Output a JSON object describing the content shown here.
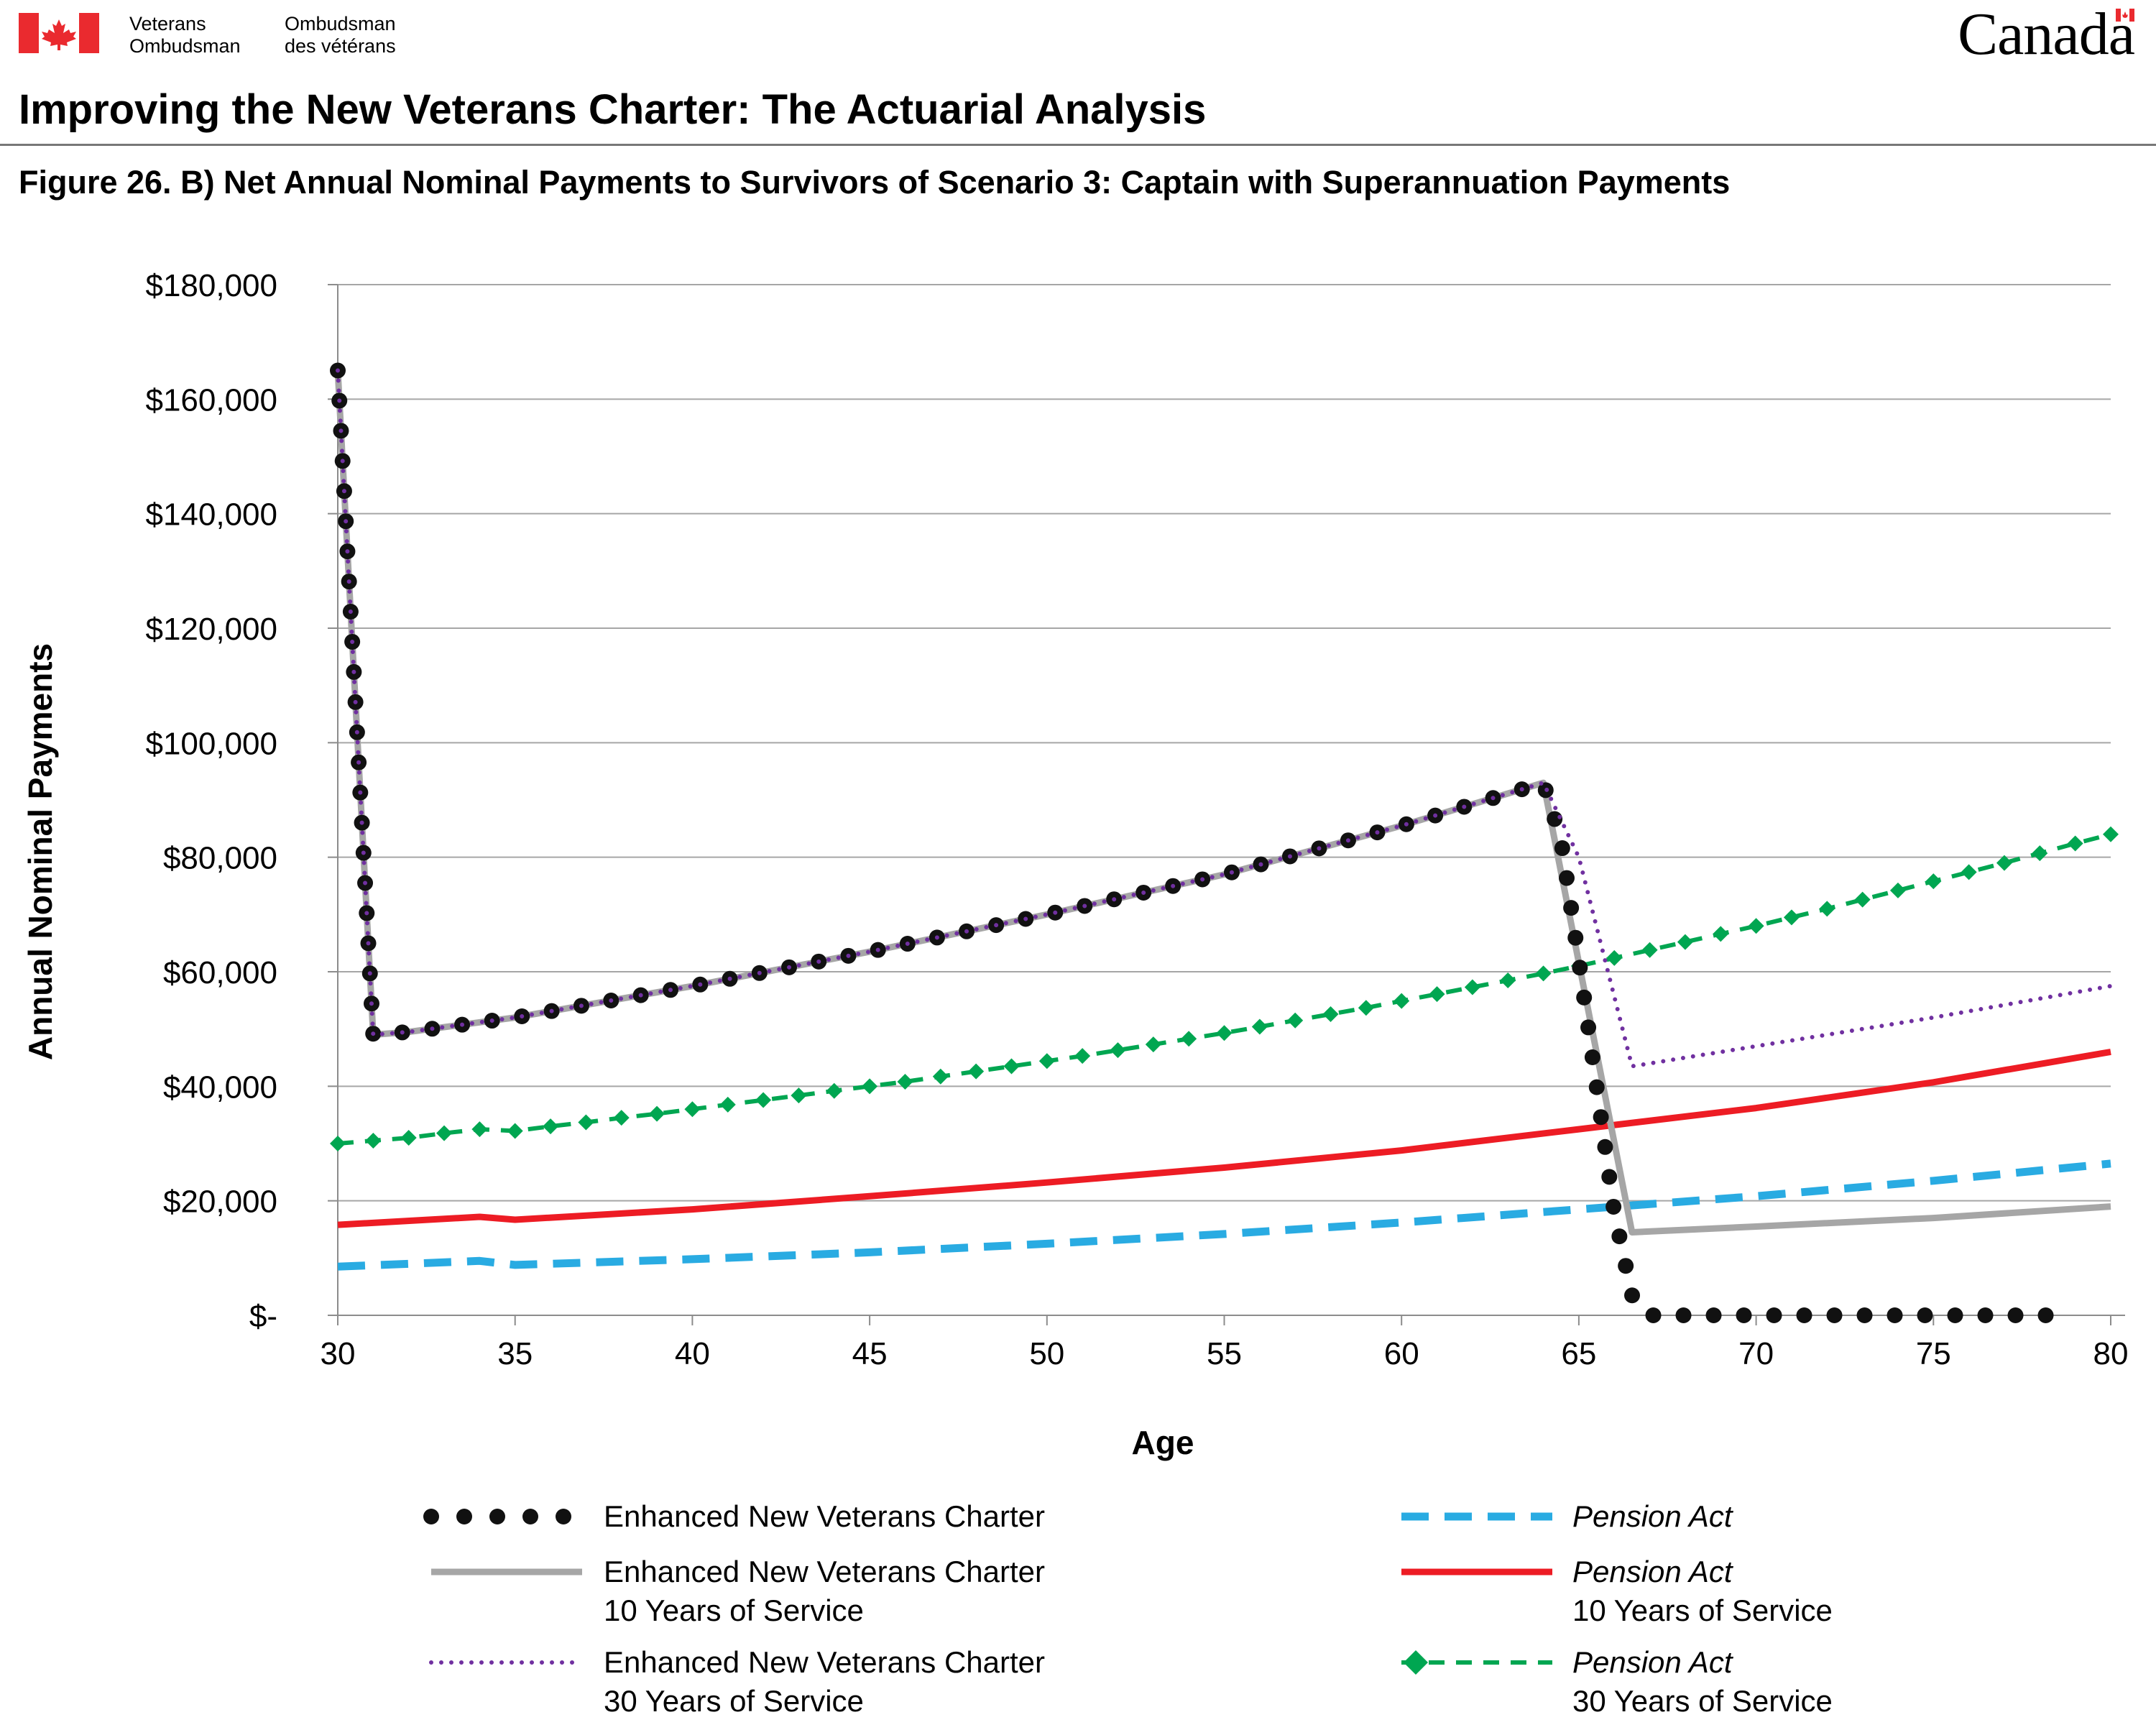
{
  "header": {
    "org_name_en_line1": "Veterans",
    "org_name_en_line2": "Ombudsman",
    "org_name_fr_line1": "Ombudsman",
    "org_name_fr_line2": "des vétérans",
    "wordmark": "Canada",
    "page_title": "Improving the New Veterans Charter: The Actuarial Analysis"
  },
  "figure": {
    "title": "Figure 26. B) Net Annual Nominal Payments to Survivors of Scenario 3: Captain with Superannuation Payments"
  },
  "colors": {
    "flag_red": "#ea2a2f",
    "enhanced_nvc": "#111111",
    "enhanced_nvc_10": "#a6a6a6",
    "enhanced_nvc_30": "#7030a0",
    "pension_act": "#29abe2",
    "pension_act_10": "#ed1c24",
    "pension_act_30": "#00a651"
  },
  "chart_data": {
    "type": "line",
    "xlabel": "Age",
    "ylabel": "Annual Nominal Payments",
    "xlim": [
      30,
      80
    ],
    "ylim": [
      0,
      180000
    ],
    "x_ticks": [
      "30",
      "35",
      "40",
      "45",
      "50",
      "55",
      "60",
      "65",
      "70",
      "75",
      "80"
    ],
    "y_ticks": [
      "$-",
      "$20,000",
      "$40,000",
      "$60,000",
      "$80,000",
      "$100,000",
      "$120,000",
      "$140,000",
      "$160,000",
      "$180,000"
    ],
    "grid": "horizontal",
    "legend": "bottom",
    "series": [
      {
        "name": "Enhanced New Veterans Charter",
        "legend_lines": [
          "Enhanced New Veterans Charter"
        ],
        "legend_italic": false,
        "style": "dots",
        "x": [
          30,
          31,
          32,
          35,
          40,
          45,
          50,
          55,
          60,
          64,
          64.5,
          65,
          65.5,
          66,
          66.5,
          67,
          68,
          70,
          75,
          79
        ],
        "y": [
          165000,
          49000,
          49500,
          52000,
          57500,
          63500,
          70000,
          77000,
          85500,
          93000,
          83000,
          62000,
          40000,
          18000,
          3500,
          0,
          0,
          0,
          0,
          0
        ]
      },
      {
        "name": "Enhanced New Veterans Charter 10 Years of Service",
        "legend_lines": [
          "Enhanced New Veterans Charter",
          "10 Years of Service"
        ],
        "legend_italic": false,
        "style": "solid",
        "x": [
          30,
          31,
          32,
          35,
          40,
          45,
          50,
          55,
          60,
          64,
          66.5,
          70,
          75,
          80
        ],
        "y": [
          165000,
          49000,
          49500,
          52000,
          57500,
          63500,
          70000,
          77000,
          85500,
          93000,
          14500,
          15500,
          17000,
          19000
        ]
      },
      {
        "name": "Enhanced New Veterans Charter 30 Years of Service",
        "legend_lines": [
          "Enhanced New Veterans Charter",
          "30 Years of Service"
        ],
        "legend_italic": false,
        "style": "dotted",
        "x": [
          30,
          31,
          32,
          35,
          40,
          45,
          50,
          55,
          60,
          64,
          65,
          66.5,
          70,
          75,
          80
        ],
        "y": [
          165000,
          49000,
          49500,
          52000,
          57500,
          63500,
          70000,
          77000,
          85500,
          93000,
          80000,
          43500,
          47000,
          52000,
          57500
        ]
      },
      {
        "name": "Pension Act",
        "legend_lines": [
          "Pension Act"
        ],
        "legend_italic": true,
        "style": "dashed",
        "x": [
          30,
          34,
          35,
          40,
          45,
          50,
          55,
          60,
          65,
          70,
          75,
          80
        ],
        "y": [
          8500,
          9500,
          8800,
          9800,
          11000,
          12500,
          14200,
          16200,
          18500,
          20800,
          23500,
          26500
        ]
      },
      {
        "name": "Pension Act 10 Years of Service",
        "legend_lines": [
          "Pension Act",
          "10 Years of Service"
        ],
        "legend_italic": true,
        "style": "solid",
        "x": [
          30,
          34,
          35,
          40,
          45,
          50,
          55,
          60,
          65,
          70,
          75,
          80
        ],
        "y": [
          15800,
          17200,
          16700,
          18500,
          20800,
          23200,
          25800,
          28800,
          32500,
          36200,
          40700,
          46000
        ]
      },
      {
        "name": "Pension Act 30 Years of Service",
        "legend_lines": [
          "Pension Act",
          "30 Years of Service"
        ],
        "legend_italic": true,
        "style": "dashed-diamond",
        "x": [
          30,
          31,
          32,
          33,
          34,
          35,
          36,
          37,
          38,
          39,
          40,
          41,
          42,
          43,
          44,
          45,
          46,
          47,
          48,
          49,
          50,
          51,
          52,
          53,
          54,
          55,
          56,
          57,
          58,
          59,
          60,
          61,
          62,
          63,
          64,
          65,
          66,
          67,
          68,
          69,
          70,
          71,
          72,
          73,
          74,
          75,
          76,
          77,
          78,
          79,
          80
        ],
        "y": [
          30000,
          30500,
          31000,
          31800,
          32500,
          32200,
          33000,
          33700,
          34500,
          35200,
          36000,
          36800,
          37600,
          38400,
          39200,
          40000,
          40800,
          41700,
          42600,
          43500,
          44400,
          45300,
          46300,
          47300,
          48300,
          49300,
          50400,
          51500,
          52600,
          53700,
          54900,
          56100,
          57300,
          58500,
          59700,
          61000,
          62400,
          63800,
          65200,
          66600,
          68000,
          69500,
          71000,
          72600,
          74200,
          75800,
          77400,
          79000,
          80700,
          82400,
          84000
        ]
      }
    ]
  }
}
